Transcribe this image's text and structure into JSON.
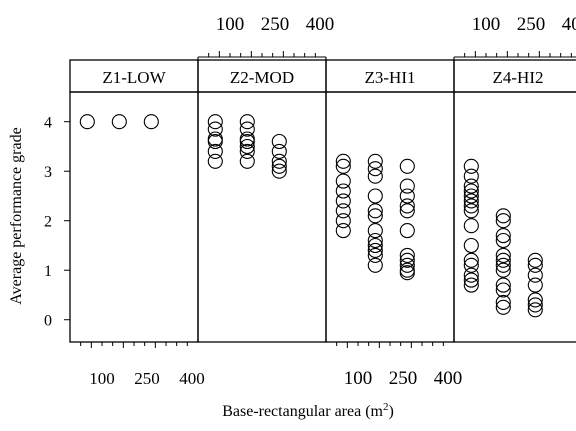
{
  "chart_data": {
    "type": "scatter",
    "layout": "trellis-1x4",
    "ylabel": "Average performance grade",
    "xlabel": "Base-rectangular area (m",
    "xlabel_superscript": "2",
    "xlabel_close": ")",
    "x_ticks": [
      100,
      250,
      400
    ],
    "y_ticks": [
      0,
      1,
      2,
      3,
      4
    ],
    "ylim": [
      -0.45,
      4.6
    ],
    "xlim": [
      0,
      600
    ],
    "panels": [
      {
        "name": "Z1-LOW",
        "points": [
          {
            "x": 100,
            "y": 4.0
          },
          {
            "x": 250,
            "y": 4.0
          },
          {
            "x": 400,
            "y": 4.0
          }
        ]
      },
      {
        "name": "Z2-MOD",
        "points": [
          {
            "x": 100,
            "y": 4.0
          },
          {
            "x": 100,
            "y": 3.85
          },
          {
            "x": 100,
            "y": 3.65
          },
          {
            "x": 100,
            "y": 3.6
          },
          {
            "x": 100,
            "y": 3.4
          },
          {
            "x": 100,
            "y": 3.2
          },
          {
            "x": 250,
            "y": 4.0
          },
          {
            "x": 250,
            "y": 3.85
          },
          {
            "x": 250,
            "y": 3.65
          },
          {
            "x": 250,
            "y": 3.6
          },
          {
            "x": 250,
            "y": 3.5
          },
          {
            "x": 250,
            "y": 3.4
          },
          {
            "x": 250,
            "y": 3.2
          },
          {
            "x": 400,
            "y": 3.6
          },
          {
            "x": 400,
            "y": 3.4
          },
          {
            "x": 400,
            "y": 3.2
          },
          {
            "x": 400,
            "y": 3.1
          },
          {
            "x": 400,
            "y": 3.0
          }
        ]
      },
      {
        "name": "Z3-HI1",
        "points": [
          {
            "x": 100,
            "y": 3.2
          },
          {
            "x": 100,
            "y": 3.1
          },
          {
            "x": 100,
            "y": 2.8
          },
          {
            "x": 100,
            "y": 2.6
          },
          {
            "x": 100,
            "y": 2.4
          },
          {
            "x": 100,
            "y": 2.2
          },
          {
            "x": 100,
            "y": 2.0
          },
          {
            "x": 100,
            "y": 1.8
          },
          {
            "x": 250,
            "y": 3.2
          },
          {
            "x": 250,
            "y": 3.05
          },
          {
            "x": 250,
            "y": 2.9
          },
          {
            "x": 250,
            "y": 2.5
          },
          {
            "x": 250,
            "y": 2.2
          },
          {
            "x": 250,
            "y": 2.1
          },
          {
            "x": 250,
            "y": 1.8
          },
          {
            "x": 250,
            "y": 1.6
          },
          {
            "x": 250,
            "y": 1.5
          },
          {
            "x": 250,
            "y": 1.4
          },
          {
            "x": 250,
            "y": 1.3
          },
          {
            "x": 250,
            "y": 1.1
          },
          {
            "x": 400,
            "y": 3.1
          },
          {
            "x": 400,
            "y": 2.7
          },
          {
            "x": 400,
            "y": 2.5
          },
          {
            "x": 400,
            "y": 2.3
          },
          {
            "x": 400,
            "y": 2.2
          },
          {
            "x": 400,
            "y": 1.8
          },
          {
            "x": 400,
            "y": 1.3
          },
          {
            "x": 400,
            "y": 1.2
          },
          {
            "x": 400,
            "y": 1.1
          },
          {
            "x": 400,
            "y": 1.0
          },
          {
            "x": 400,
            "y": 0.95
          }
        ]
      },
      {
        "name": "Z4-HI2",
        "points": [
          {
            "x": 100,
            "y": 3.1
          },
          {
            "x": 100,
            "y": 2.9
          },
          {
            "x": 100,
            "y": 2.7
          },
          {
            "x": 100,
            "y": 2.6
          },
          {
            "x": 100,
            "y": 2.5
          },
          {
            "x": 100,
            "y": 2.4
          },
          {
            "x": 100,
            "y": 2.3
          },
          {
            "x": 100,
            "y": 2.2
          },
          {
            "x": 100,
            "y": 1.9
          },
          {
            "x": 100,
            "y": 1.5
          },
          {
            "x": 100,
            "y": 1.2
          },
          {
            "x": 100,
            "y": 1.1
          },
          {
            "x": 100,
            "y": 0.9
          },
          {
            "x": 100,
            "y": 0.8
          },
          {
            "x": 100,
            "y": 0.7
          },
          {
            "x": 250,
            "y": 2.1
          },
          {
            "x": 250,
            "y": 2.0
          },
          {
            "x": 250,
            "y": 1.7
          },
          {
            "x": 250,
            "y": 1.6
          },
          {
            "x": 250,
            "y": 1.3
          },
          {
            "x": 250,
            "y": 1.2
          },
          {
            "x": 250,
            "y": 1.1
          },
          {
            "x": 250,
            "y": 1.0
          },
          {
            "x": 250,
            "y": 0.7
          },
          {
            "x": 250,
            "y": 0.6
          },
          {
            "x": 250,
            "y": 0.35
          },
          {
            "x": 250,
            "y": 0.25
          },
          {
            "x": 400,
            "y": 1.2
          },
          {
            "x": 400,
            "y": 1.1
          },
          {
            "x": 400,
            "y": 0.9
          },
          {
            "x": 400,
            "y": 0.7
          },
          {
            "x": 400,
            "y": 0.4
          },
          {
            "x": 400,
            "y": 0.3
          },
          {
            "x": 400,
            "y": 0.2
          }
        ]
      }
    ],
    "x_tick_label_side": [
      "bottom",
      "top",
      "bottom",
      "top"
    ],
    "grid": false,
    "legend": "none"
  }
}
